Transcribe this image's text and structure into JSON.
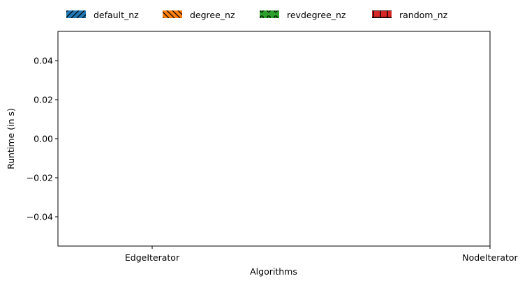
{
  "chart_data": {
    "type": "bar",
    "categories": [
      "EdgeIterator",
      "NodeIterator"
    ],
    "series": [
      {
        "name": "default_nz",
        "values": [
          0,
          0
        ],
        "color": "#1f77b4",
        "hatch": "slash"
      },
      {
        "name": "degree_nz",
        "values": [
          0,
          0
        ],
        "color": "#ff7f0e",
        "hatch": "backslash"
      },
      {
        "name": "revdegree_nz",
        "values": [
          0,
          0
        ],
        "color": "#2ca02c",
        "hatch": "circles"
      },
      {
        "name": "random_nz",
        "values": [
          0,
          0
        ],
        "color": "#d62728",
        "hatch": "plus"
      }
    ],
    "xlabel": "Algorithms",
    "ylabel": "Runtime (in s)",
    "ylim": [
      -0.055,
      0.055
    ],
    "yticks": [
      -0.04,
      -0.02,
      0.0,
      0.02,
      0.04
    ],
    "ytick_labels": [
      "−0.04",
      "−0.02",
      "0.00",
      "0.02",
      "0.04"
    ],
    "legend_position": "top",
    "grid": false
  }
}
